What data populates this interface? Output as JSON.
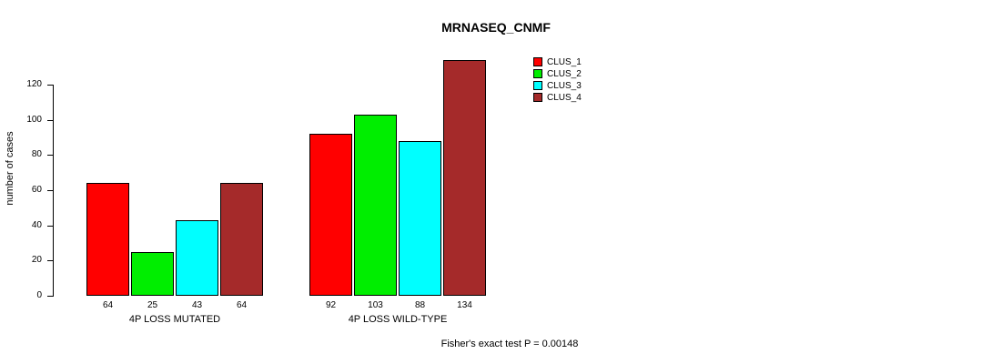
{
  "chart": {
    "title": "MRNASEQ_CNMF",
    "ylabel": "number of cases",
    "footnote": "Fisher's exact test P = 0.00148"
  },
  "chart_data": {
    "type": "bar",
    "title": "MRNASEQ_CNMF",
    "xlabel": "",
    "ylabel": "number of cases",
    "categories": [
      "4P LOSS MUTATED",
      "4P LOSS WILD-TYPE"
    ],
    "series": [
      {
        "name": "CLUS_1",
        "color": "#FF0000",
        "values": [
          64,
          92
        ]
      },
      {
        "name": "CLUS_2",
        "color": "#00EE00",
        "values": [
          25,
          103
        ]
      },
      {
        "name": "CLUS_3",
        "color": "#00FFFF",
        "values": [
          43,
          88
        ]
      },
      {
        "name": "CLUS_4",
        "color": "#A52A2A",
        "values": [
          64,
          134
        ]
      }
    ],
    "yticks": [
      0,
      20,
      40,
      60,
      80,
      100,
      120
    ],
    "ylim": [
      0,
      134
    ],
    "bar_value_labels": [
      [
        64,
        25,
        43,
        64
      ],
      [
        92,
        103,
        88,
        134
      ]
    ],
    "legend": [
      "CLUS_1",
      "CLUS_2",
      "CLUS_3",
      "CLUS_4"
    ],
    "legend_position": "top-right",
    "grid": false,
    "annotation": "Fisher's exact test P = 0.00148"
  }
}
